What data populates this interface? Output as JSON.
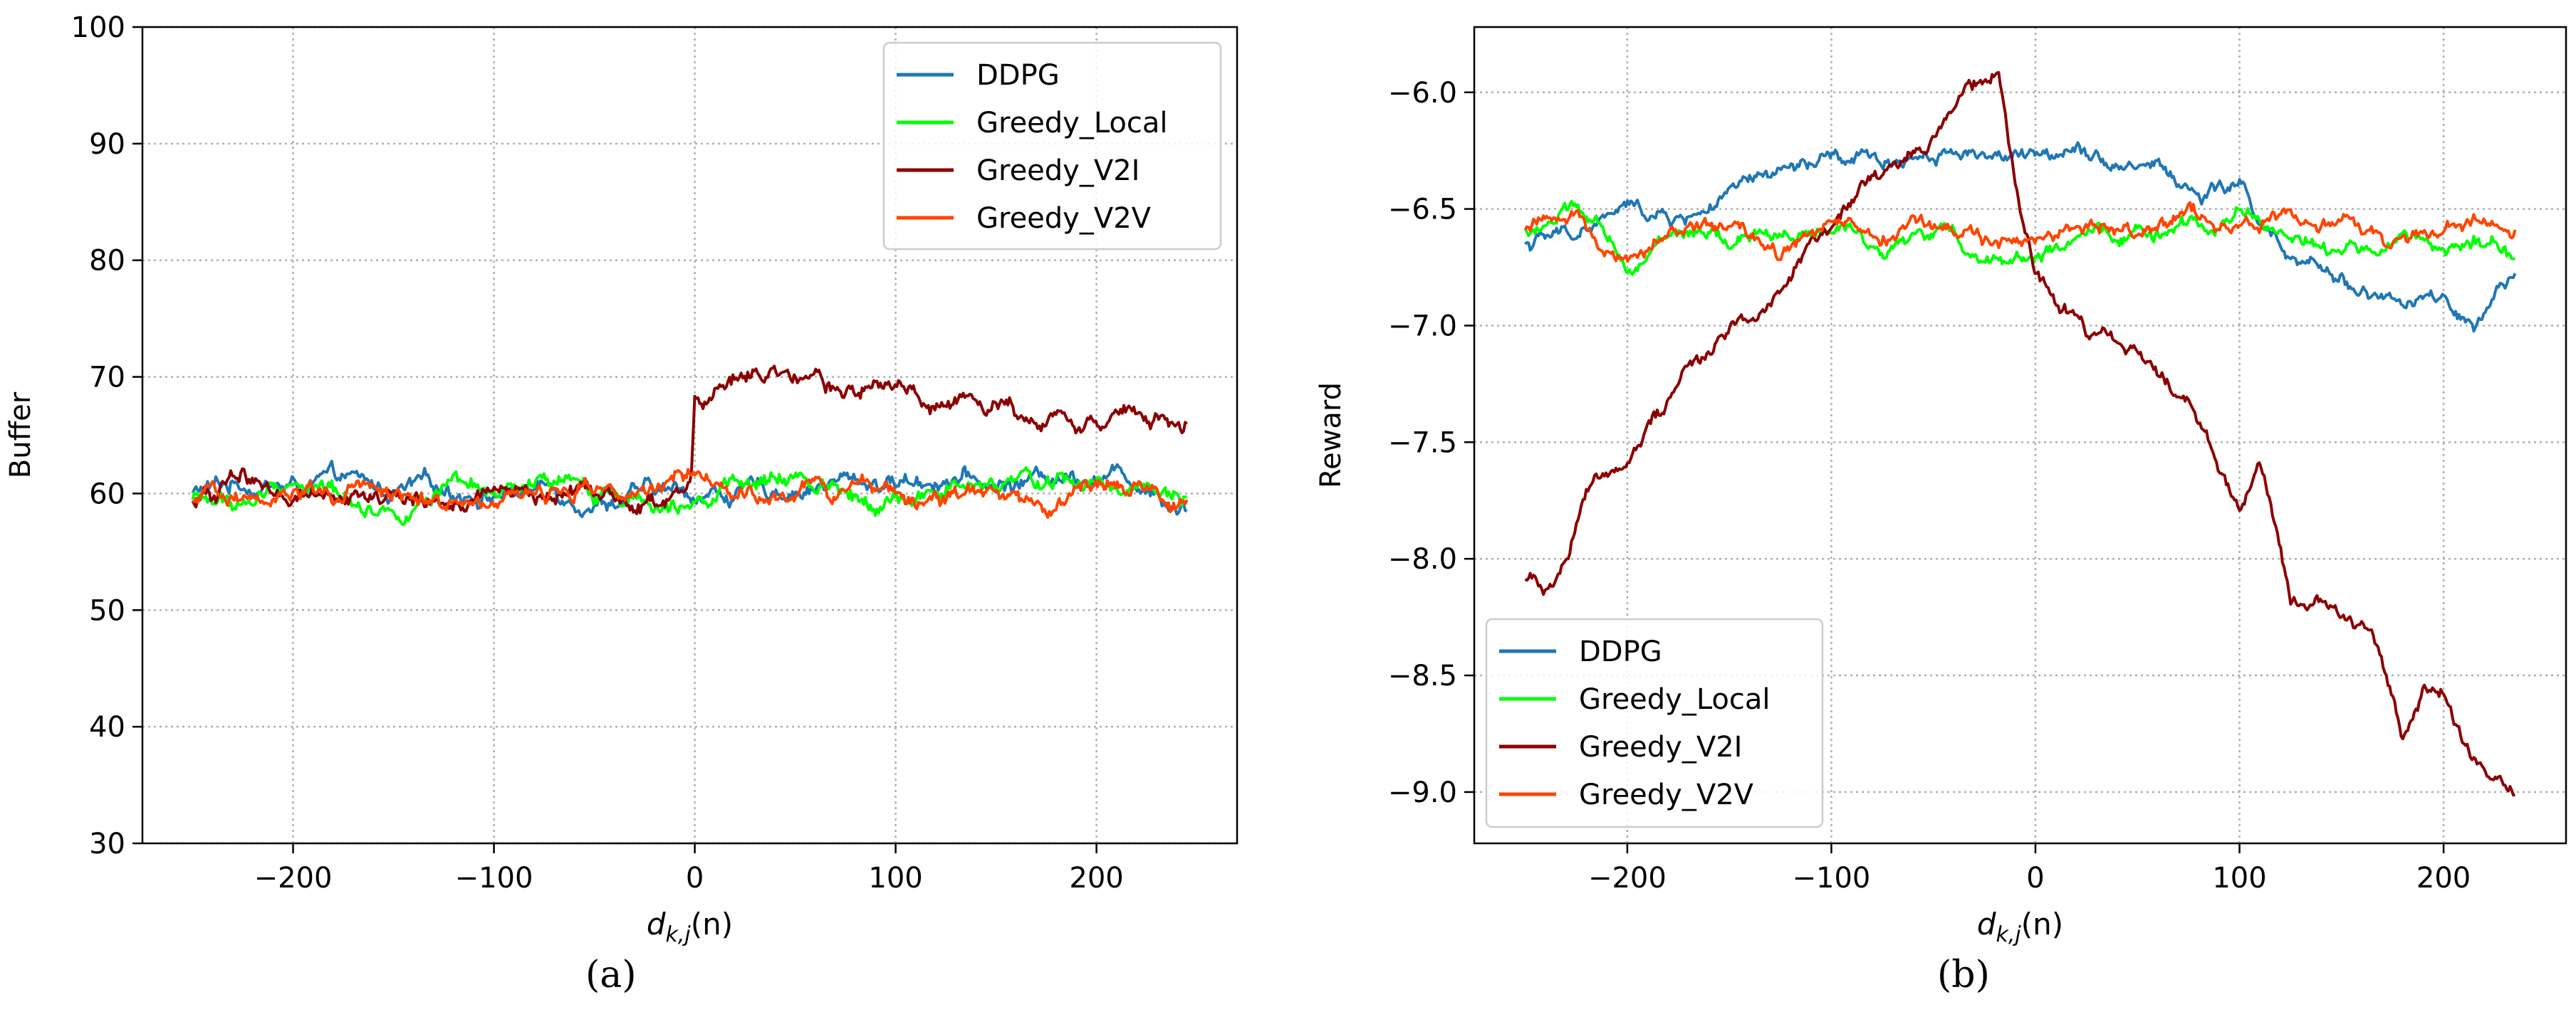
{
  "chart_data": [
    {
      "type": "line",
      "panel_label": "(a)",
      "xlabel": "d_{k,j}(n)",
      "ylabel": "Buffer",
      "xlim": [
        -275,
        270
      ],
      "ylim": [
        30,
        100
      ],
      "xticks": [
        -200,
        -100,
        0,
        100,
        200
      ],
      "xtick_labels": [
        "−200",
        "−100",
        "0",
        "100",
        "200"
      ],
      "yticks": [
        30,
        40,
        50,
        60,
        70,
        80,
        90,
        100
      ],
      "ytick_labels": [
        "30",
        "40",
        "50",
        "60",
        "70",
        "80",
        "90",
        "100"
      ],
      "grid": true,
      "legend": "top-right",
      "series": [
        {
          "name": "DDPG",
          "color": "#1f77b4",
          "x": [
            -250,
            -225,
            -200,
            -175,
            -150,
            -125,
            -100,
            -75,
            -50,
            -25,
            0,
            25,
            50,
            75,
            100,
            125,
            150,
            175,
            200,
            225,
            245
          ],
          "y": [
            60,
            61,
            60.5,
            61,
            60,
            60.5,
            60,
            60.5,
            59.5,
            60,
            60,
            60,
            60.5,
            61,
            61,
            61.5,
            60.5,
            61.5,
            62,
            61,
            59
          ]
        },
        {
          "name": "Greedy_Local",
          "color": "#00ff00",
          "x": [
            -250,
            -225,
            -200,
            -175,
            -150,
            -125,
            -100,
            -75,
            -50,
            -25,
            0,
            25,
            50,
            75,
            100,
            125,
            150,
            175,
            200,
            225,
            245
          ],
          "y": [
            59.5,
            59,
            61,
            60,
            58.5,
            60,
            59.5,
            60.5,
            60,
            59.5,
            60.5,
            60.5,
            61,
            60.5,
            59.5,
            60,
            60.5,
            61,
            60.5,
            61,
            60.5
          ]
        },
        {
          "name": "Greedy_V2I",
          "color": "#8b0000",
          "x": [
            -250,
            -225,
            -200,
            -175,
            -150,
            -125,
            -100,
            -75,
            -50,
            -25,
            -2,
            0,
            10,
            30,
            50,
            75,
            100,
            125,
            150,
            175,
            200,
            225,
            245
          ],
          "y": [
            59,
            61.5,
            60,
            60.5,
            59.5,
            59,
            60,
            59.5,
            60.5,
            59,
            60,
            68,
            68.5,
            70.5,
            69,
            68.5,
            69,
            68,
            67.5,
            67,
            66.5,
            66.5,
            65.5
          ]
        },
        {
          "name": "Greedy_V2V",
          "color": "#ff4500",
          "x": [
            -250,
            -225,
            -200,
            -175,
            -150,
            -125,
            -100,
            -75,
            -50,
            -25,
            0,
            25,
            50,
            75,
            100,
            125,
            150,
            175,
            200,
            225,
            245
          ],
          "y": [
            59,
            60,
            60.5,
            59.5,
            60,
            59.5,
            60,
            60,
            60.5,
            60,
            60.5,
            59.5,
            60,
            60,
            60.5,
            59.5,
            59.5,
            58.5,
            60,
            60,
            59
          ]
        }
      ]
    },
    {
      "type": "line",
      "panel_label": "(b)",
      "xlabel": "d_{k,j}(n)",
      "ylabel": "Reward",
      "xlim": [
        -275,
        260
      ],
      "ylim": [
        -9.22,
        -5.72
      ],
      "xticks": [
        -200,
        -100,
        0,
        100,
        200
      ],
      "xtick_labels": [
        "−200",
        "−100",
        "0",
        "100",
        "200"
      ],
      "yticks": [
        -9.0,
        -8.5,
        -8.0,
        -7.5,
        -7.0,
        -6.5,
        -6.0
      ],
      "ytick_labels": [
        "−9.0",
        "−8.5",
        "−8.0",
        "−7.5",
        "−7.0",
        "−6.5",
        "−6.0"
      ],
      "grid": true,
      "legend": "bottom-left",
      "series": [
        {
          "name": "DDPG",
          "color": "#1f77b4",
          "x": [
            -250,
            -225,
            -200,
            -175,
            -150,
            -125,
            -100,
            -75,
            -50,
            -25,
            0,
            20,
            40,
            60,
            80,
            100,
            125,
            150,
            175,
            200,
            215,
            235
          ],
          "y": [
            -6.65,
            -6.6,
            -6.5,
            -6.55,
            -6.45,
            -6.35,
            -6.3,
            -6.3,
            -6.25,
            -6.25,
            -6.3,
            -6.2,
            -6.3,
            -6.3,
            -6.45,
            -6.4,
            -6.75,
            -6.8,
            -6.9,
            -6.9,
            -7.05,
            -6.8
          ]
        },
        {
          "name": "Greedy_Local",
          "color": "#00ff00",
          "x": [
            -250,
            -225,
            -200,
            -175,
            -150,
            -125,
            -100,
            -75,
            -50,
            -25,
            0,
            25,
            50,
            75,
            100,
            125,
            150,
            175,
            200,
            225,
            235
          ],
          "y": [
            -6.6,
            -6.5,
            -6.75,
            -6.6,
            -6.65,
            -6.6,
            -6.6,
            -6.65,
            -6.6,
            -6.7,
            -6.7,
            -6.65,
            -6.6,
            -6.6,
            -6.5,
            -6.6,
            -6.7,
            -6.65,
            -6.65,
            -6.65,
            -6.75
          ]
        },
        {
          "name": "Greedy_V2I",
          "color": "#8b0000",
          "x": [
            -250,
            -235,
            -220,
            -200,
            -175,
            -150,
            -125,
            -100,
            -75,
            -50,
            -35,
            -18,
            -10,
            0,
            15,
            30,
            50,
            75,
            100,
            110,
            125,
            150,
            165,
            180,
            190,
            200,
            215,
            235
          ],
          "y": [
            -8.1,
            -8.1,
            -7.7,
            -7.55,
            -7.25,
            -7.0,
            -6.85,
            -6.55,
            -6.35,
            -6.2,
            -6.0,
            -5.95,
            -6.4,
            -6.8,
            -6.95,
            -7.05,
            -7.15,
            -7.3,
            -7.8,
            -7.6,
            -8.15,
            -8.2,
            -8.3,
            -8.75,
            -8.55,
            -8.6,
            -8.9,
            -9.05
          ]
        },
        {
          "name": "Greedy_V2V",
          "color": "#ff4500",
          "x": [
            -250,
            -225,
            -200,
            -175,
            -150,
            -125,
            -100,
            -75,
            -50,
            -25,
            0,
            25,
            50,
            75,
            100,
            110,
            125,
            150,
            175,
            200,
            215,
            235
          ],
          "y": [
            -6.6,
            -6.5,
            -6.7,
            -6.6,
            -6.6,
            -6.7,
            -6.55,
            -6.6,
            -6.6,
            -6.65,
            -6.65,
            -6.55,
            -6.6,
            -6.55,
            -6.55,
            -6.55,
            -6.55,
            -6.55,
            -6.65,
            -6.6,
            -6.55,
            -6.6
          ]
        }
      ]
    }
  ]
}
